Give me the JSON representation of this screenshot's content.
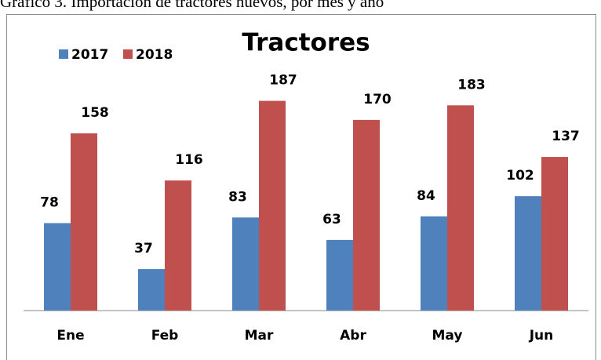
{
  "caption": "Gráfico 3. Importación de tractores nuevos, por mes y año",
  "chart_data": {
    "type": "bar",
    "title": "Tractores",
    "categories": [
      "Ene",
      "Feb",
      "Mar",
      "Abr",
      "May",
      "Jun"
    ],
    "series": [
      {
        "name": "2017",
        "color": "#4f81bd",
        "values": [
          78,
          37,
          83,
          63,
          84,
          102
        ]
      },
      {
        "name": "2018",
        "color": "#c0504d",
        "values": [
          158,
          116,
          187,
          170,
          183,
          137
        ]
      }
    ],
    "ylim": [
      0,
      200
    ],
    "legend": "top-left",
    "grid": false
  }
}
